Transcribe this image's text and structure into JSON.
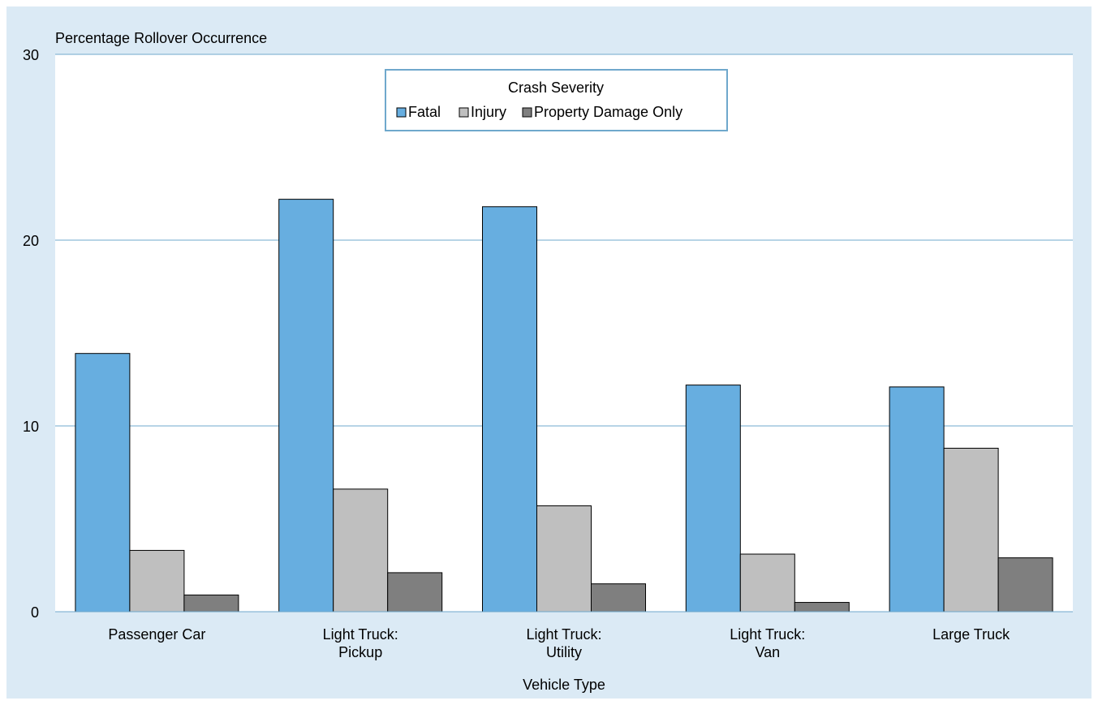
{
  "chart_data": {
    "type": "bar",
    "title": "",
    "ylabel": "Percentage Rollover Occurrence",
    "xlabel": "Vehicle Type",
    "ylim": [
      0,
      30
    ],
    "yticks": [
      0,
      10,
      20,
      30
    ],
    "grid": true,
    "categories": [
      [
        "Passenger Car"
      ],
      [
        "Light Truck:",
        "Pickup"
      ],
      [
        "Light Truck:",
        "Utility"
      ],
      [
        "Light Truck:",
        "Van"
      ],
      [
        "Large Truck"
      ]
    ],
    "legend": {
      "title": "Crash Severity",
      "placement": "top-center"
    },
    "series": [
      {
        "name": "Fatal",
        "color": "#67aee0",
        "values": [
          13.9,
          22.2,
          21.8,
          12.2,
          12.1
        ]
      },
      {
        "name": "Injury",
        "color": "#bfbfbf",
        "values": [
          3.3,
          6.6,
          5.7,
          3.1,
          8.8
        ]
      },
      {
        "name": "Property Damage Only",
        "color": "#7f7f7f",
        "values": [
          0.9,
          2.1,
          1.5,
          0.5,
          2.9
        ]
      }
    ]
  }
}
